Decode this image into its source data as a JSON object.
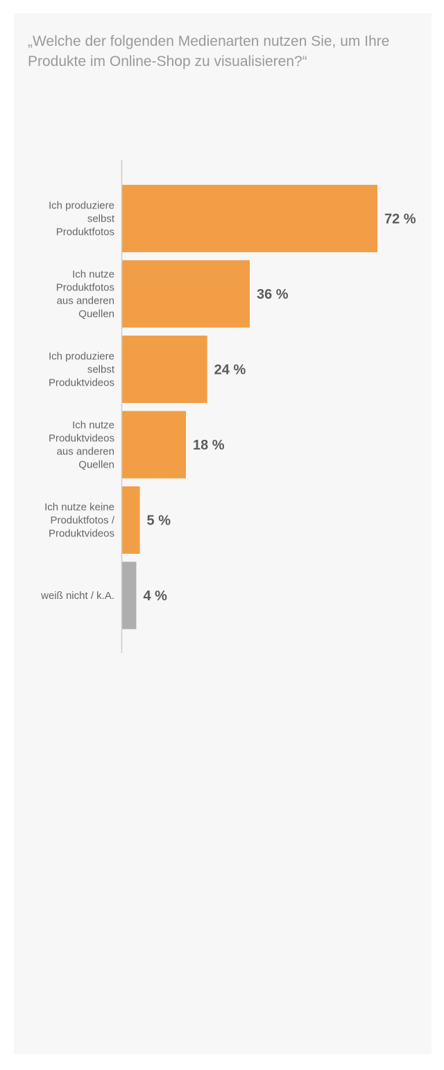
{
  "chart_data": {
    "type": "bar",
    "orientation": "horizontal",
    "title": "„Welche der folgenden Medienarten nutzen Sie, um Ihre Produkte im Online-Shop zu visualisieren?“",
    "categories": [
      "Ich produziere selbst Produktfotos",
      "Ich nutze Produktfotos aus anderen Quellen",
      "Ich produziere selbst Produktvideos",
      "Ich nutze Produktvideos aus anderen Quellen",
      "Ich nutze keine Produktfotos / Produktvideos",
      "weiß nicht / k.A."
    ],
    "category_lines": [
      [
        "Ich produziere",
        "selbst",
        "Produktfotos"
      ],
      [
        "Ich nutze",
        "Produktfotos",
        "aus anderen",
        "Quellen"
      ],
      [
        "Ich produziere",
        "selbst",
        "Produktvideos"
      ],
      [
        "Ich nutze",
        "Produktvideos",
        "aus anderen",
        "Quellen"
      ],
      [
        "Ich nutze keine",
        "Produktfotos /",
        "Produktvideos"
      ],
      [
        "weiß nicht / k.A."
      ]
    ],
    "values": [
      72,
      36,
      24,
      18,
      5,
      4
    ],
    "value_labels": [
      "72 %",
      "36 %",
      "24 %",
      "18 %",
      "5 %",
      "4 %"
    ],
    "unit": "%",
    "xlim": [
      0,
      72
    ],
    "grid": false,
    "colors": {
      "bar": "#f29e46",
      "bar_muted": "#aeaeae",
      "axis": "#cccccc"
    },
    "bar_colors": [
      "#f29e46",
      "#f29e46",
      "#f29e46",
      "#f29e46",
      "#f29e46",
      "#aeaeae"
    ]
  }
}
